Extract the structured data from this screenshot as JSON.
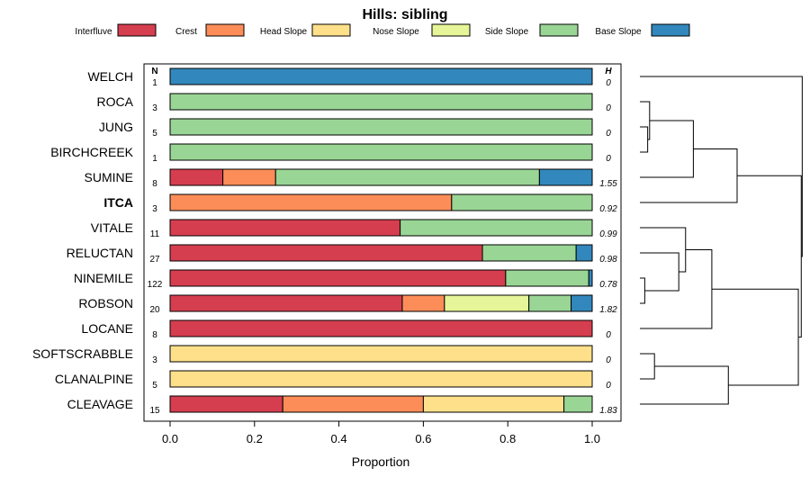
{
  "chart_data": {
    "type": "bar",
    "orientation": "horizontal",
    "stacked": true,
    "title": "Hills: sibling",
    "xlabel": "Proportion",
    "ylabel": "",
    "xlim": [
      0,
      1
    ],
    "x_ticks": [
      0.0,
      0.2,
      0.4,
      0.6,
      0.8,
      1.0
    ],
    "x_tick_labels": [
      "0.0",
      "0.2",
      "0.4",
      "0.6",
      "0.8",
      "1.0"
    ],
    "n_header": "N",
    "h_header": "H",
    "legend": [
      {
        "name": "Interfluve",
        "color": "#d53e4f"
      },
      {
        "name": "Crest",
        "color": "#fc8d59"
      },
      {
        "name": "Head Slope",
        "color": "#fee08b"
      },
      {
        "name": "Nose Slope",
        "color": "#e6f598"
      },
      {
        "name": "Side Slope",
        "color": "#99d594"
      },
      {
        "name": "Base Slope",
        "color": "#3288bd"
      }
    ],
    "categories": [
      "WELCH",
      "ROCA",
      "JUNG",
      "BIRCHCREEK",
      "SUMINE",
      "ITCA",
      "VITALE",
      "RELUCTAN",
      "NINEMILE",
      "ROBSON",
      "LOCANE",
      "SOFTSCRABBLE",
      "CLANALPINE",
      "CLEAVAGE"
    ],
    "highlight": "ITCA",
    "n": [
      "1",
      "3",
      "5",
      "1",
      "8",
      "3",
      "11",
      "27",
      "122",
      "20",
      "8",
      "3",
      "5",
      "15"
    ],
    "h": [
      "0",
      "0",
      "0",
      "0",
      "1.55",
      "0.92",
      "0.99",
      "0.98",
      "0.78",
      "1.82",
      "0",
      "0",
      "0",
      "1.83"
    ],
    "series": [
      {
        "name": "Interfluve",
        "values": [
          0,
          0,
          0,
          0,
          0.125,
          0,
          0.545,
          0.74,
          0.795,
          0.55,
          1.0,
          0,
          0,
          0.267
        ]
      },
      {
        "name": "Crest",
        "values": [
          0,
          0,
          0,
          0,
          0.125,
          0.667,
          0,
          0,
          0,
          0.1,
          0,
          0,
          0,
          0.333
        ]
      },
      {
        "name": "Head Slope",
        "values": [
          0,
          0,
          0,
          0,
          0,
          0,
          0,
          0,
          0,
          0,
          0,
          1.0,
          1.0,
          0.333
        ]
      },
      {
        "name": "Nose Slope",
        "values": [
          0,
          0,
          0,
          0,
          0,
          0,
          0,
          0,
          0,
          0.2,
          0,
          0,
          0,
          0
        ]
      },
      {
        "name": "Side Slope",
        "values": [
          0,
          1.0,
          1.0,
          1.0,
          0.625,
          0.333,
          0.455,
          0.222,
          0.197,
          0.1,
          0,
          0,
          0,
          0.067
        ]
      },
      {
        "name": "Base Slope",
        "values": [
          1.0,
          0,
          0,
          0,
          0.125,
          0,
          0,
          0.038,
          0.008,
          0.05,
          0,
          0,
          0,
          0
        ]
      }
    ],
    "dendrogram": {
      "merges": [
        {
          "a": "JUNG",
          "b": "BIRCHCREEK",
          "height": 0.08
        },
        {
          "a": "ROCA",
          "b": "m0",
          "height": 0.1
        },
        {
          "a": "m1",
          "b": "SUMINE",
          "height": 0.55
        },
        {
          "a": "m2",
          "b": "ITCA",
          "height": 1.0
        },
        {
          "a": "NINEMILE",
          "b": "ROBSON",
          "height": 0.05
        },
        {
          "a": "RELUCTAN",
          "b": "m4",
          "height": 0.4
        },
        {
          "a": "VITALE",
          "b": "m5",
          "height": 0.47
        },
        {
          "a": "m6",
          "b": "LOCANE",
          "height": 0.74
        },
        {
          "a": "SOFTSCRABBLE",
          "b": "CLANALPINE",
          "height": 0.15
        },
        {
          "a": "m8",
          "b": "CLEAVAGE",
          "height": 0.91
        },
        {
          "a": "m7",
          "b": "m9",
          "height": 1.63
        },
        {
          "a": "m3",
          "b": "m10",
          "height": 1.66
        },
        {
          "a": "WELCH",
          "b": "m11",
          "height": 1.67
        }
      ]
    }
  }
}
